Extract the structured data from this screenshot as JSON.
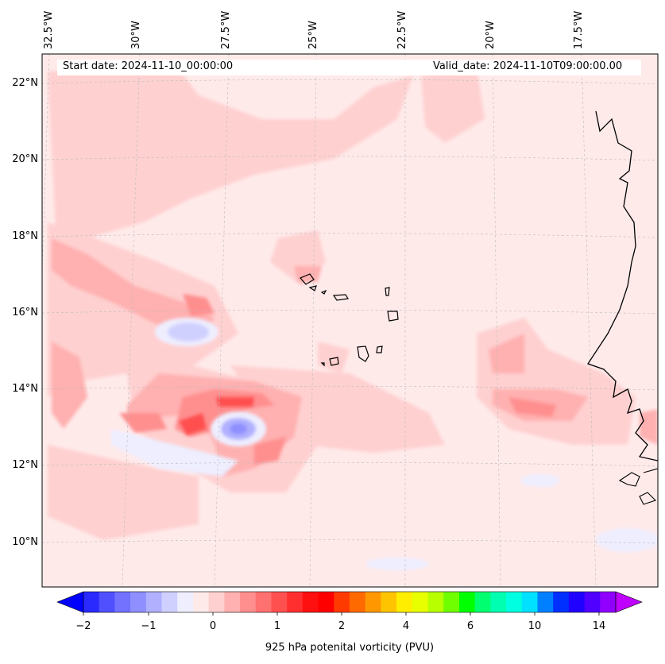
{
  "map": {
    "start_date_label": "Start date: 2024-11-10_00:00:00",
    "valid_date_label": "Valid_date: 2024-11-10T09:00:00.00",
    "lat_ticks": [
      "22°N",
      "20°N",
      "18°N",
      "16°N",
      "14°N",
      "12°N",
      "10°N"
    ],
    "lon_ticks": [
      "32.5°W",
      "30°W",
      "27.5°W",
      "25°W",
      "22.5°W",
      "20°W",
      "17.5°W"
    ],
    "region": "Eastern tropical Atlantic, Cape Verde Islands and West African coast"
  },
  "colorbar": {
    "title": "925 hPa potenital vorticity (PVU)",
    "tick_labels": [
      "−2",
      "−1",
      "0",
      "1",
      "2",
      "4",
      "6",
      "10",
      "14"
    ],
    "colors": [
      "#0000ff",
      "#2a2aff",
      "#5050ff",
      "#7272ff",
      "#8f8fff",
      "#b0b0ff",
      "#d0d0ff",
      "#eeeeff",
      "#ffeaea",
      "#ffd0d0",
      "#ffb0b0",
      "#ff8f8f",
      "#ff7070",
      "#ff5050",
      "#ff2f2f",
      "#ff1010",
      "#ff0000",
      "#ff3a00",
      "#ff6a00",
      "#ff9800",
      "#ffc400",
      "#ffee00",
      "#e8ff00",
      "#b8ff00",
      "#70ff00",
      "#00ff00",
      "#00ff70",
      "#00ffb0",
      "#00ffe0",
      "#00e0ff",
      "#0080ff",
      "#0030ff",
      "#2000ff",
      "#5000ff",
      "#9000ff",
      "#c000ff"
    ]
  }
}
